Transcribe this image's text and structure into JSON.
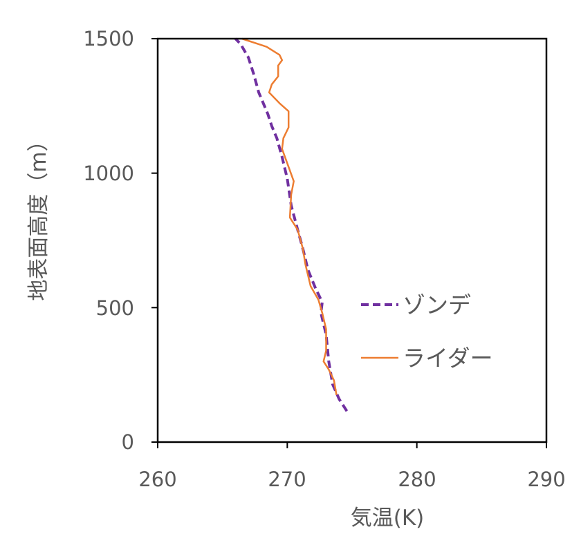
{
  "chart_data": {
    "type": "line",
    "xlabel": "気温(K)",
    "ylabel": "地表面高度（m）",
    "xlim": [
      260,
      290
    ],
    "ylim": [
      0,
      1500
    ],
    "xticks": [
      "260",
      "270",
      "280",
      "290"
    ],
    "yticks": [
      "0",
      "500",
      "1000",
      "1500"
    ],
    "legend_position": "right",
    "series": [
      {
        "name": "ゾンデ",
        "color": "#7030A0",
        "style": "dashed",
        "points": [
          [
            274.6,
            115
          ],
          [
            274.0,
            160
          ],
          [
            273.5,
            215
          ],
          [
            273.2,
            300
          ],
          [
            273.0,
            400
          ],
          [
            272.6,
            480
          ],
          [
            272.7,
            520
          ],
          [
            272.2,
            570
          ],
          [
            271.6,
            640
          ],
          [
            271.2,
            720
          ],
          [
            270.8,
            790
          ],
          [
            270.3,
            880
          ],
          [
            270.0,
            980
          ],
          [
            269.6,
            1060
          ],
          [
            269.2,
            1130
          ],
          [
            268.8,
            1175
          ],
          [
            268.5,
            1220
          ],
          [
            267.8,
            1300
          ],
          [
            267.4,
            1370
          ],
          [
            267.0,
            1430
          ],
          [
            266.4,
            1480
          ],
          [
            266.0,
            1500
          ]
        ]
      },
      {
        "name": "ライダー",
        "color": "#ED7D31",
        "style": "solid",
        "points": [
          [
            273.8,
            175
          ],
          [
            273.6,
            230
          ],
          [
            273.2,
            270
          ],
          [
            272.8,
            300
          ],
          [
            273.0,
            340
          ],
          [
            273.0,
            420
          ],
          [
            272.7,
            480
          ],
          [
            272.4,
            530
          ],
          [
            271.8,
            580
          ],
          [
            271.4,
            660
          ],
          [
            271.2,
            720
          ],
          [
            270.8,
            790
          ],
          [
            270.2,
            835
          ],
          [
            270.3,
            920
          ],
          [
            270.5,
            970
          ],
          [
            270.2,
            1010
          ],
          [
            269.6,
            1090
          ],
          [
            269.7,
            1130
          ],
          [
            270.1,
            1170
          ],
          [
            270.1,
            1230
          ],
          [
            269.4,
            1260
          ],
          [
            268.6,
            1300
          ],
          [
            268.8,
            1330
          ],
          [
            269.3,
            1360
          ],
          [
            269.3,
            1400
          ],
          [
            269.6,
            1420
          ],
          [
            269.4,
            1440
          ],
          [
            268.4,
            1470
          ],
          [
            266.5,
            1500
          ]
        ]
      }
    ]
  }
}
